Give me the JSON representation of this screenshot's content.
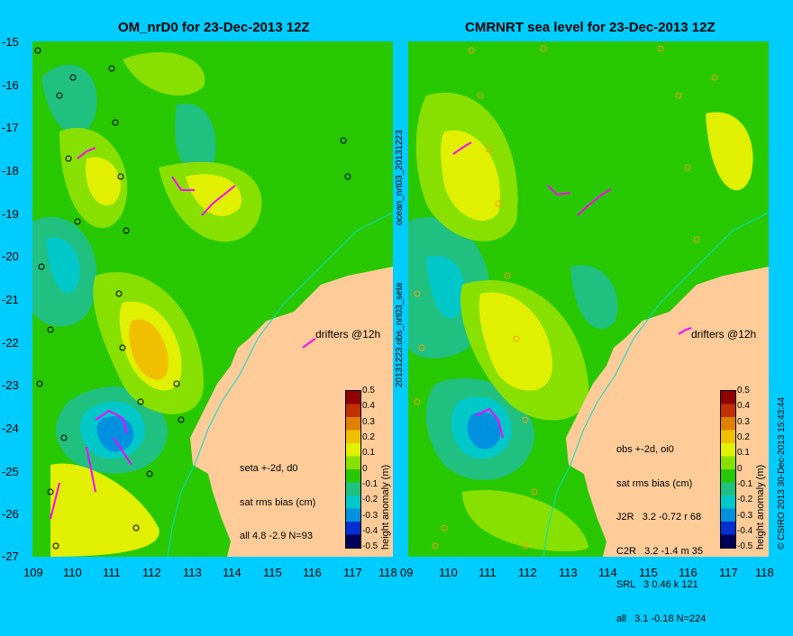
{
  "panels": [
    {
      "title": "OM_nrD0 for 23-Dec-2013 12Z",
      "stats": [
        "seta +-2d, d0",
        "sat rms bias (cm)",
        "all 4.8 -2.9 N=93"
      ],
      "drifter_label": "drifters @12h"
    },
    {
      "title": "CMRNRT sea level  for 23-Dec-2013 12Z",
      "stats": [
        "obs +-2d, oi0",
        "sat rms bias (cm)",
        "J2R   3.2 -0.72 r 68",
        "C2R   3.2 -1.4 m 35",
        "SRL   3 0.46 k 121",
        "all   3.1 -0.18 N=224"
      ],
      "drifter_label": "drifters @12h"
    }
  ],
  "axes": {
    "lat_ticks": [
      "-15",
      "-16",
      "-17",
      "-18",
      "-19",
      "-20",
      "-21",
      "-22",
      "-23",
      "-24",
      "-25",
      "-26",
      "-27"
    ],
    "lon_ticks_left": [
      "109",
      "110",
      "111",
      "112",
      "113",
      "114",
      "115",
      "116",
      "117",
      "118"
    ],
    "lon_ticks_right": [
      "09",
      "110",
      "111",
      "112",
      "113",
      "114",
      "115",
      "116",
      "117",
      "118"
    ]
  },
  "colorbar": {
    "label": "height anomaly (m)",
    "ticks": [
      "0.5",
      "0.4",
      "0.3",
      "0.2",
      "0.1",
      "0",
      "-0.1",
      "-0.2",
      "-0.3",
      "-0.4",
      "-0.5"
    ],
    "colors": [
      "#00005a",
      "#0030d0",
      "#0090e0",
      "#00c8c8",
      "#20c080",
      "#28c800",
      "#88e000",
      "#e0f000",
      "#f0c000",
      "#e08000",
      "#c03000",
      "#900000"
    ]
  },
  "side_labels": {
    "top": "ocean_nrt03_20131223",
    "middle": "20131223.obs_nrt03_seta",
    "right": "© CSIRO 2013   30-Dec-2013 15:43:44"
  },
  "colors": {
    "background": "#00ccff",
    "land": "#ffcc99",
    "drifter": "#ff00ff"
  }
}
